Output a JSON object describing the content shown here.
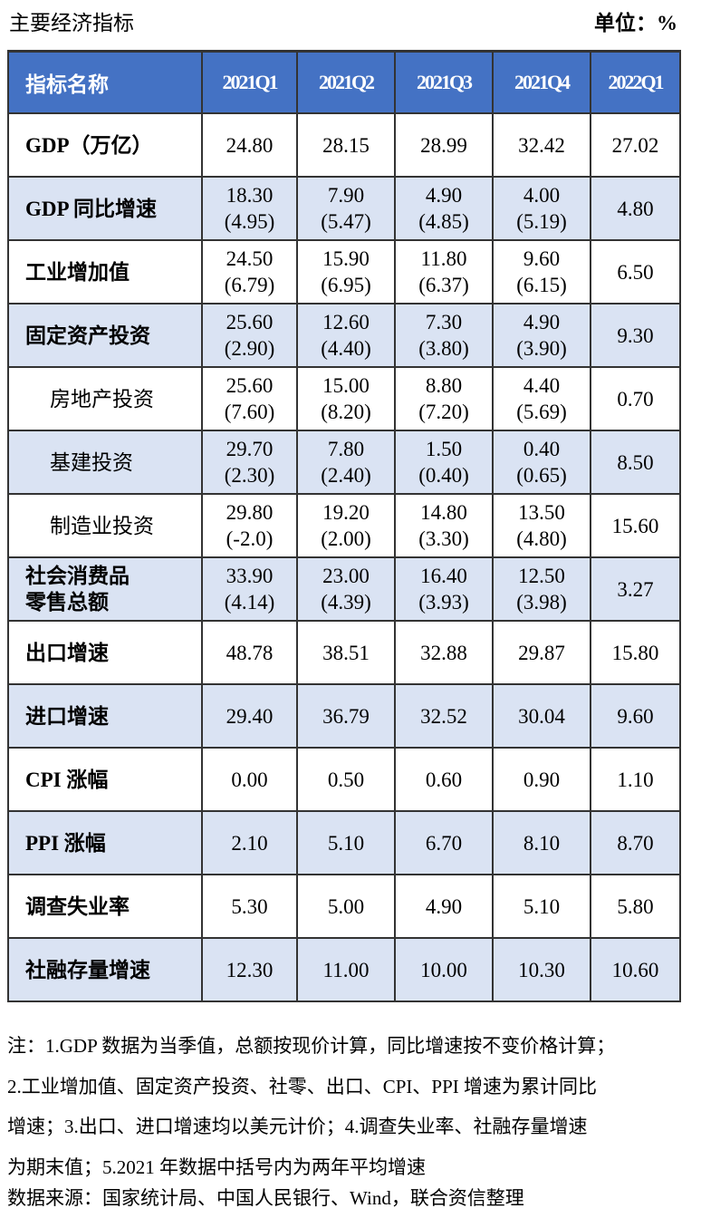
{
  "title": "主要经济指标",
  "unit": "单位：%",
  "table": {
    "headers": [
      "指标名称",
      "2021Q1",
      "2021Q2",
      "2021Q3",
      "2021Q4",
      "2022Q1"
    ],
    "rows": [
      {
        "name": "GDP（万亿）",
        "sub": false,
        "cells": [
          [
            "24.80"
          ],
          [
            "28.15"
          ],
          [
            "28.99"
          ],
          [
            "32.42"
          ],
          [
            "27.02"
          ]
        ]
      },
      {
        "name": "GDP 同比增速",
        "sub": false,
        "cells": [
          [
            "18.30",
            "(4.95)"
          ],
          [
            "7.90",
            "(5.47)"
          ],
          [
            "4.90",
            "(4.85)"
          ],
          [
            "4.00",
            "(5.19)"
          ],
          [
            "4.80"
          ]
        ]
      },
      {
        "name": "工业增加值",
        "sub": false,
        "cells": [
          [
            "24.50",
            "(6.79)"
          ],
          [
            "15.90",
            "(6.95)"
          ],
          [
            "11.80",
            "(6.37)"
          ],
          [
            "9.60",
            "(6.15)"
          ],
          [
            "6.50"
          ]
        ]
      },
      {
        "name": "固定资产投资",
        "sub": false,
        "cells": [
          [
            "25.60",
            "(2.90)"
          ],
          [
            "12.60",
            "(4.40)"
          ],
          [
            "7.30",
            "(3.80)"
          ],
          [
            "4.90",
            "(3.90)"
          ],
          [
            "9.30"
          ]
        ]
      },
      {
        "name": "房地产投资",
        "sub": true,
        "cells": [
          [
            "25.60",
            "(7.60)"
          ],
          [
            "15.00",
            "(8.20)"
          ],
          [
            "8.80",
            "(7.20)"
          ],
          [
            "4.40",
            "(5.69)"
          ],
          [
            "0.70"
          ]
        ]
      },
      {
        "name": "基建投资",
        "sub": true,
        "cells": [
          [
            "29.70",
            "(2.30)"
          ],
          [
            "7.80",
            "(2.40)"
          ],
          [
            "1.50",
            "(0.40)"
          ],
          [
            "0.40",
            "(0.65)"
          ],
          [
            "8.50"
          ]
        ]
      },
      {
        "name": "制造业投资",
        "sub": true,
        "cells": [
          [
            "29.80",
            "(-2.0)"
          ],
          [
            "19.20",
            "(2.00)"
          ],
          [
            "14.80",
            "(3.30)"
          ],
          [
            "13.50",
            "(4.80)"
          ],
          [
            "15.60"
          ]
        ]
      },
      {
        "name": "社会消费品",
        "name2": "零售总额",
        "sub": false,
        "cells": [
          [
            "33.90",
            "(4.14)"
          ],
          [
            "23.00",
            "(4.39)"
          ],
          [
            "16.40",
            "(3.93)"
          ],
          [
            "12.50",
            "(3.98)"
          ],
          [
            "3.27"
          ]
        ]
      },
      {
        "name": "出口增速",
        "sub": false,
        "cells": [
          [
            "48.78"
          ],
          [
            "38.51"
          ],
          [
            "32.88"
          ],
          [
            "29.87"
          ],
          [
            "15.80"
          ]
        ]
      },
      {
        "name": "进口增速",
        "sub": false,
        "cells": [
          [
            "29.40"
          ],
          [
            "36.79"
          ],
          [
            "32.52"
          ],
          [
            "30.04"
          ],
          [
            "9.60"
          ]
        ]
      },
      {
        "name": "CPI 涨幅",
        "sub": false,
        "cells": [
          [
            "0.00"
          ],
          [
            "0.50"
          ],
          [
            "0.60"
          ],
          [
            "0.90"
          ],
          [
            "1.10"
          ]
        ]
      },
      {
        "name": "PPI 涨幅",
        "sub": false,
        "cells": [
          [
            "2.10"
          ],
          [
            "5.10"
          ],
          [
            "6.70"
          ],
          [
            "8.10"
          ],
          [
            "8.70"
          ]
        ]
      },
      {
        "name": "调查失业率",
        "sub": false,
        "cells": [
          [
            "5.30"
          ],
          [
            "5.00"
          ],
          [
            "4.90"
          ],
          [
            "5.10"
          ],
          [
            "5.80"
          ]
        ]
      },
      {
        "name": "社融存量增速",
        "sub": false,
        "cells": [
          [
            "12.30"
          ],
          [
            "11.00"
          ],
          [
            "10.00"
          ],
          [
            "10.30"
          ],
          [
            "10.60"
          ]
        ]
      }
    ]
  },
  "notes": [
    "注：1.GDP 数据为当季值，总额按现价计算，同比增速按不变价格计算；",
    "2.工业增加值、固定资产投资、社零、出口、CPI、PPI 增速为累计同比",
    "增速；3.出口、进口增速均以美元计价；4.调查失业率、社融存量增速",
    "为期末值；5.2021 年数据中括号内为两年平均增速"
  ],
  "source": "数据来源：国家统计局、中国人民银行、Wind，联合资信整理",
  "colors": {
    "header_bg": "#4472c4",
    "shade_bg": "#dae3f3"
  }
}
